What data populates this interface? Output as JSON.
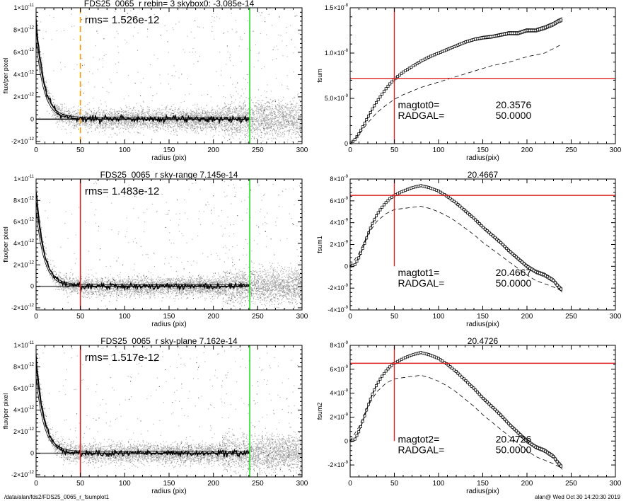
{
  "colors": {
    "scatter": "#a9a9a9",
    "scatter_dark": "#555555",
    "profile": "#000000",
    "green": "#22dd22",
    "red": "#dd2222",
    "orange": "#ff9900",
    "axis": "#000000"
  },
  "footer": {
    "left": "/data/alan/fds2/FDS25_0065_r_fsumplot1",
    "right": "alan@  Wed Oct 30 14:20:30 2019"
  },
  "chart_data": [
    {
      "id": "p1",
      "type": "scatter",
      "title": "FDS25_0065_r rebin= 3    skybox0: -3.085e-14",
      "xlabel": "radius (pix)",
      "ylabel": "flux/per pixel",
      "xlim": [
        0,
        300
      ],
      "ylim": [
        -2.2e-12,
        1e-11
      ],
      "xticks": [
        0,
        50,
        100,
        150,
        200,
        250,
        300
      ],
      "xtick_labels": [
        "0",
        "50",
        "100",
        "150",
        "200",
        "250",
        "300"
      ],
      "yticks": [
        -2e-12,
        0,
        2e-12,
        4e-12,
        6e-12,
        8e-12,
        1e-11
      ],
      "ytick_labels": [
        {
          "base": "-2×10",
          "exp": "-12"
        },
        {
          "base": "0",
          "exp": ""
        },
        {
          "base": "2×10",
          "exp": "-12"
        },
        {
          "base": "4×10",
          "exp": "-12"
        },
        {
          "base": "6×10",
          "exp": "-12"
        },
        {
          "base": "8×10",
          "exp": "-12"
        },
        {
          "base": "1×10",
          "exp": "-11"
        }
      ],
      "annotation": "rms= 1.526e-12",
      "vlines": [
        {
          "x": 50,
          "color": "orange",
          "dashed": true
        },
        {
          "x": 241,
          "color": "green",
          "dashed": false
        }
      ],
      "zero_line_color": "profile",
      "profile": {
        "peak": 9e-12,
        "scale": 9,
        "noise": 4e-13,
        "end": 241
      },
      "scatter_noise": {
        "rms": 1.526e-12,
        "x_end": 300
      }
    },
    {
      "id": "p2",
      "type": "line",
      "title": "",
      "xlabel": "radius(pix)",
      "ylabel": "fsum",
      "xlim": [
        0,
        300
      ],
      "ylim": [
        0,
        1.5e-08
      ],
      "xticks": [
        0,
        50,
        100,
        150,
        200,
        250,
        300
      ],
      "xtick_labels": [
        "0",
        "50",
        "100",
        "150",
        "200",
        "250",
        "300"
      ],
      "yticks": [
        0,
        5e-09,
        1e-08,
        1.5e-08
      ],
      "ytick_labels": [
        {
          "base": "0",
          "exp": ""
        },
        {
          "base": "5.0×10",
          "exp": "-9"
        },
        {
          "base": "1.0×10",
          "exp": "-8"
        },
        {
          "base": "1.5×10",
          "exp": "-8"
        }
      ],
      "text_lines": [
        {
          "label": "magtot0=",
          "value": "20.3576"
        },
        {
          "label": "RADGAL=",
          "value": "50.0000"
        }
      ],
      "cross": {
        "x": 50,
        "y": 7.2e-09
      },
      "series": [
        {
          "kind": "main",
          "x": [
            0,
            5,
            10,
            15,
            20,
            25,
            30,
            35,
            40,
            45,
            50,
            60,
            70,
            80,
            90,
            100,
            110,
            120,
            130,
            140,
            150,
            160,
            170,
            180,
            190,
            200,
            210,
            220,
            230,
            235,
            240
          ],
          "values": [
            0,
            4e-10,
            1.1e-09,
            2e-09,
            2.9e-09,
            3.8e-09,
            4.6e-09,
            5.3e-09,
            6e-09,
            6.6e-09,
            7.1e-09,
            7.9e-09,
            8.5e-09,
            9.1e-09,
            9.6e-09,
            1e-08,
            1.04e-08,
            1.08e-08,
            1.12e-08,
            1.15e-08,
            1.17e-08,
            1.18e-08,
            1.2e-08,
            1.22e-08,
            1.22e-08,
            1.25e-08,
            1.25e-08,
            1.28e-08,
            1.32e-08,
            1.35e-08,
            1.37e-08
          ]
        },
        {
          "kind": "dashed",
          "x": [
            0,
            10,
            20,
            30,
            40,
            50,
            60,
            70,
            80,
            90,
            100,
            120,
            140,
            160,
            180,
            200,
            220,
            240
          ],
          "values": [
            0,
            1e-09,
            2.3e-09,
            3.4e-09,
            4.2e-09,
            4.9e-09,
            5.4e-09,
            5.8e-09,
            6.2e-09,
            6.5e-09,
            6.8e-09,
            7.4e-09,
            8e-09,
            8.6e-09,
            9e-09,
            9.6e-09,
            1e-08,
            1.1e-08
          ]
        }
      ]
    },
    {
      "id": "p3",
      "type": "scatter",
      "title": "FDS25_0065_r sky-range  7.145e-14",
      "xlabel": "radius (pix)",
      "ylabel": "flux/per pixel",
      "xlim": [
        0,
        300
      ],
      "ylim": [
        -2.2e-12,
        1e-11
      ],
      "xticks": [
        0,
        50,
        100,
        150,
        200,
        250,
        300
      ],
      "xtick_labels": [
        "0",
        "50",
        "100",
        "150",
        "200",
        "250",
        "300"
      ],
      "yticks": [
        -2e-12,
        0,
        2e-12,
        4e-12,
        6e-12,
        8e-12,
        1e-11
      ],
      "ytick_labels": [
        {
          "base": "-2×10",
          "exp": "-12"
        },
        {
          "base": "0",
          "exp": ""
        },
        {
          "base": "2×10",
          "exp": "-12"
        },
        {
          "base": "4×10",
          "exp": "-12"
        },
        {
          "base": "6×10",
          "exp": "-12"
        },
        {
          "base": "8×10",
          "exp": "-12"
        },
        {
          "base": "1×10",
          "exp": "-11"
        }
      ],
      "annotation": "rms= 1.483e-12",
      "vlines": [
        {
          "x": 50,
          "color": "red",
          "dashed": false
        },
        {
          "x": 241,
          "color": "green",
          "dashed": false
        }
      ],
      "zero_line_color": "scatter_dark",
      "profile": {
        "peak": 9e-12,
        "scale": 9,
        "noise": 4e-13,
        "end": 241
      },
      "scatter_noise": {
        "rms": 1.483e-12,
        "x_end": 300
      }
    },
    {
      "id": "p4",
      "type": "line",
      "title": "20.4667",
      "xlabel": "radius(pix)",
      "ylabel": "fsum1",
      "xlim": [
        0,
        300
      ],
      "ylim": [
        -4e-09,
        8e-09
      ],
      "xticks": [
        0,
        50,
        100,
        150,
        200,
        250,
        300
      ],
      "xtick_labels": [
        "0",
        "50",
        "100",
        "150",
        "200",
        "250",
        "300"
      ],
      "yticks": [
        -4e-09,
        -2e-09,
        0,
        2e-09,
        4e-09,
        6e-09,
        8e-09
      ],
      "ytick_labels": [
        {
          "base": "-4×10",
          "exp": "-9"
        },
        {
          "base": "-2×10",
          "exp": "-9"
        },
        {
          "base": "0",
          "exp": ""
        },
        {
          "base": "2×10",
          "exp": "-9"
        },
        {
          "base": "4×10",
          "exp": "-9"
        },
        {
          "base": "6×10",
          "exp": "-9"
        },
        {
          "base": "8×10",
          "exp": "-9"
        }
      ],
      "text_lines": [
        {
          "label": "magtot1=",
          "value": "20.4667"
        },
        {
          "label": "RADGAL=",
          "value": "50.0000"
        }
      ],
      "cross": {
        "x": 50,
        "y": 6.5e-09,
        "ymin_data": 0
      },
      "series": [
        {
          "kind": "main",
          "x": [
            0,
            5,
            10,
            15,
            20,
            25,
            30,
            35,
            40,
            45,
            50,
            60,
            70,
            80,
            90,
            100,
            110,
            120,
            130,
            140,
            150,
            160,
            170,
            180,
            190,
            200,
            210,
            220,
            230,
            235,
            240
          ],
          "values": [
            0,
            1e-10,
            8e-10,
            1.8e-09,
            2.9e-09,
            3.9e-09,
            4.7e-09,
            5.3e-09,
            5.8e-09,
            6.2e-09,
            6.5e-09,
            6.9e-09,
            7.2e-09,
            7.4e-09,
            7.2e-09,
            6.9e-09,
            6.4e-09,
            5.8e-09,
            5.1e-09,
            4.4e-09,
            3.6e-09,
            2.9e-09,
            2.2e-09,
            1.4e-09,
            7e-10,
            0,
            -5e-10,
            -8e-10,
            -1.3e-09,
            -1.8e-09,
            -2.2e-09
          ]
        },
        {
          "kind": "dashed",
          "x": [
            0,
            10,
            20,
            30,
            40,
            50,
            60,
            70,
            80,
            90,
            100,
            110,
            120,
            130,
            140,
            150,
            160,
            170,
            180,
            190,
            200,
            210,
            220,
            230,
            240
          ],
          "values": [
            0,
            1.2e-09,
            2.9e-09,
            4.1e-09,
            4.8e-09,
            5.2e-09,
            5.3e-09,
            5.4e-09,
            5.5e-09,
            5.3e-09,
            5e-09,
            4.6e-09,
            4.1e-09,
            3.5e-09,
            2.9e-09,
            2.2e-09,
            1.6e-09,
            1e-09,
            4e-10,
            -2e-10,
            -8e-10,
            -1.3e-09,
            -1.6e-09,
            -1.9e-09,
            -2.3e-09
          ]
        }
      ]
    },
    {
      "id": "p5",
      "type": "scatter",
      "title": "FDS25_0065_r sky-plane  7.162e-14",
      "xlabel": "radius (pix)",
      "ylabel": "flux/per pixel",
      "xlim": [
        0,
        300
      ],
      "ylim": [
        -2.2e-12,
        1e-11
      ],
      "xticks": [
        0,
        50,
        100,
        150,
        200,
        250,
        300
      ],
      "xtick_labels": [
        "0",
        "50",
        "100",
        "150",
        "200",
        "250",
        "300"
      ],
      "yticks": [
        -2e-12,
        0,
        2e-12,
        4e-12,
        6e-12,
        8e-12,
        1e-11
      ],
      "ytick_labels": [
        {
          "base": "-2×10",
          "exp": "-12"
        },
        {
          "base": "0",
          "exp": ""
        },
        {
          "base": "2×10",
          "exp": "-12"
        },
        {
          "base": "4×10",
          "exp": "-12"
        },
        {
          "base": "6×10",
          "exp": "-12"
        },
        {
          "base": "8×10",
          "exp": "-12"
        },
        {
          "base": "1×10",
          "exp": "-11"
        }
      ],
      "annotation": "rms= 1.517e-12",
      "vlines": [
        {
          "x": 50,
          "color": "red",
          "dashed": false
        },
        {
          "x": 241,
          "color": "green",
          "dashed": false
        }
      ],
      "zero_line_color": "scatter_dark",
      "profile": {
        "peak": 9e-12,
        "scale": 9,
        "noise": 4e-13,
        "end": 241
      },
      "scatter_noise": {
        "rms": 1.517e-12,
        "x_end": 300
      }
    },
    {
      "id": "p6",
      "type": "line",
      "title": "20.4726",
      "xlabel": "radius(pix)",
      "ylabel": "fsum2",
      "xlim": [
        0,
        300
      ],
      "ylim": [
        -3e-09,
        8e-09
      ],
      "xticks": [
        0,
        50,
        100,
        150,
        200,
        250,
        300
      ],
      "xtick_labels": [
        "0",
        "50",
        "100",
        "150",
        "200",
        "250",
        "300"
      ],
      "yticks": [
        -2e-09,
        0,
        2e-09,
        4e-09,
        6e-09,
        8e-09
      ],
      "ytick_labels": [
        {
          "base": "-2×10",
          "exp": "-9"
        },
        {
          "base": "0",
          "exp": ""
        },
        {
          "base": "2×10",
          "exp": "-9"
        },
        {
          "base": "4×10",
          "exp": "-9"
        },
        {
          "base": "6×10",
          "exp": "-9"
        },
        {
          "base": "8×10",
          "exp": "-9"
        }
      ],
      "text_lines": [
        {
          "label": "magtot2=",
          "value": "20.4726"
        },
        {
          "label": "RADGAL=",
          "value": "50.0000"
        }
      ],
      "cross": {
        "x": 50,
        "y": 6.5e-09,
        "ymin_data": 0
      },
      "series": [
        {
          "kind": "main",
          "x": [
            0,
            5,
            10,
            15,
            20,
            25,
            30,
            35,
            40,
            45,
            50,
            60,
            70,
            80,
            90,
            100,
            110,
            120,
            130,
            140,
            150,
            160,
            170,
            180,
            190,
            200,
            210,
            220,
            230,
            235,
            240
          ],
          "values": [
            0,
            1e-10,
            8e-10,
            1.8e-09,
            2.9e-09,
            3.9e-09,
            4.7e-09,
            5.3e-09,
            5.8e-09,
            6.2e-09,
            6.5e-09,
            6.9e-09,
            7.2e-09,
            7.4e-09,
            7.2e-09,
            6.9e-09,
            6.4e-09,
            5.8e-09,
            5.1e-09,
            4.4e-09,
            3.6e-09,
            2.9e-09,
            2.2e-09,
            1.4e-09,
            7e-10,
            0,
            -5e-10,
            -8e-10,
            -1.3e-09,
            -1.8e-09,
            -2.2e-09
          ]
        },
        {
          "kind": "dashed",
          "x": [
            0,
            10,
            20,
            30,
            40,
            50,
            60,
            70,
            80,
            90,
            100,
            110,
            120,
            130,
            140,
            150,
            160,
            170,
            180,
            190,
            200,
            210,
            220,
            230,
            240
          ],
          "values": [
            0,
            1.2e-09,
            2.9e-09,
            4.1e-09,
            4.8e-09,
            5.2e-09,
            5.3e-09,
            5.4e-09,
            5.5e-09,
            5.3e-09,
            5e-09,
            4.6e-09,
            4.1e-09,
            3.5e-09,
            2.9e-09,
            2.2e-09,
            1.6e-09,
            1e-09,
            4e-10,
            -2e-10,
            -8e-10,
            -1.3e-09,
            -1.6e-09,
            -1.9e-09,
            -2.3e-09
          ]
        }
      ]
    }
  ]
}
